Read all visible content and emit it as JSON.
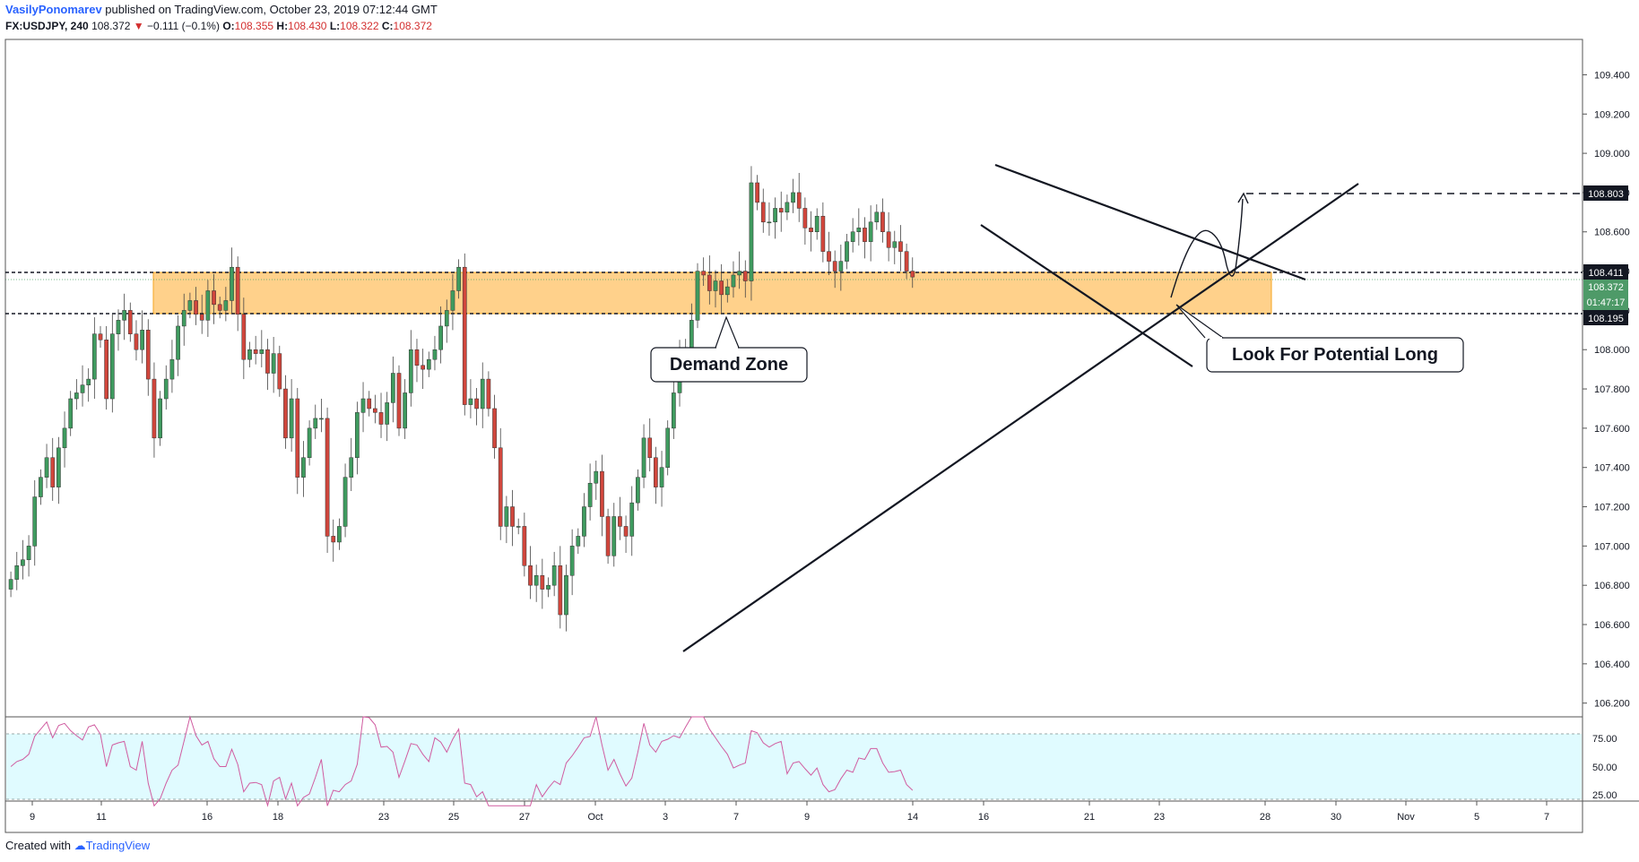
{
  "header": {
    "author": "VasilyPonomarev",
    "published": "published on TradingView.com, October 23, 2019 07:12:44 GMT",
    "symbol": "FX:USDJPY, 240",
    "last": "108.372",
    "change": "−0.111 (−0.1%)",
    "o_label": "O:",
    "o_value": "108.355",
    "h_label": "H:",
    "h_value": "108.430",
    "l_label": "L:",
    "l_value": "108.322",
    "c_label": "C:",
    "c_value": "108.372"
  },
  "footer": {
    "created_with": "Created with",
    "brand": "TradingView"
  },
  "colors": {
    "up": "#3f9b5f",
    "down": "#d0463c",
    "zone": "#ffc977",
    "rsi_band": "#e0fbff",
    "rsi_line": "#d05ca0"
  },
  "chart_data": {
    "type": "candlestick",
    "symbol": "USDJPY",
    "timeframe": "240",
    "ylim": [
      106.13,
      109.58
    ],
    "y_ticks": [
      "109.400",
      "109.200",
      "109.000",
      "108.800",
      "108.600",
      "108.400",
      "108.200",
      "108.000",
      "107.800",
      "107.600",
      "107.400",
      "107.200",
      "107.000",
      "106.800",
      "106.600",
      "106.400",
      "106.200"
    ],
    "x_ticks": [
      "9",
      "11",
      "16",
      "18",
      "23",
      "25",
      "27",
      "Oct",
      "3",
      "7",
      "9",
      "14",
      "16",
      "21",
      "23",
      "28",
      "30",
      "Nov",
      "5",
      "7"
    ],
    "price_labels": {
      "level_high": "108.803",
      "zone_top": "108.411",
      "last": "108.372",
      "countdown": "01:47:17",
      "zone_bottom": "108.195"
    },
    "annotations": {
      "demand_zone": "Demand Zone",
      "look_long": "Look For Potential Long"
    },
    "demand_zone": [
      108.195,
      108.411
    ],
    "target_level": 108.803,
    "closes": [
      106.83,
      106.9,
      106.93,
      107.0,
      107.25,
      107.35,
      107.45,
      107.3,
      107.5,
      107.6,
      107.75,
      107.78,
      107.82,
      107.85,
      108.08,
      108.05,
      107.75,
      108.08,
      108.15,
      108.2,
      108.08,
      108.0,
      108.1,
      107.85,
      107.55,
      107.75,
      107.85,
      107.95,
      108.12,
      108.2,
      108.25,
      108.18,
      108.15,
      108.3,
      108.23,
      108.2,
      108.25,
      108.42,
      108.18,
      107.95,
      108.0,
      107.98,
      108.0,
      107.88,
      107.98,
      107.8,
      107.55,
      107.75,
      107.35,
      107.45,
      107.6,
      107.65,
      107.65,
      107.05,
      107.02,
      107.1,
      107.35,
      107.45,
      107.68,
      107.75,
      107.7,
      107.68,
      107.62,
      107.73,
      107.88,
      107.6,
      107.78,
      108.0,
      107.92,
      107.9,
      107.95,
      108.0,
      108.12,
      108.2,
      108.3,
      108.42,
      107.72,
      107.75,
      107.7,
      107.85,
      107.7,
      107.5,
      107.1,
      107.2,
      107.1,
      107.1,
      106.9,
      106.8,
      106.85,
      106.78,
      106.8,
      106.9,
      106.65,
      106.85,
      107.0,
      107.05,
      107.2,
      107.32,
      107.38,
      107.15,
      106.95,
      107.15,
      107.1,
      107.05,
      107.22,
      107.35,
      107.55,
      107.45,
      107.3,
      107.4,
      107.6,
      107.78,
      107.95,
      108.0,
      108.15,
      108.4,
      108.38,
      108.3,
      108.35,
      108.28,
      108.32,
      108.38,
      108.4,
      108.35,
      108.85,
      108.75,
      108.65,
      108.65,
      108.72,
      108.7,
      108.75,
      108.8,
      108.72,
      108.62,
      108.6,
      108.68,
      108.5,
      108.45,
      108.4,
      108.45,
      108.55,
      108.6,
      108.62,
      108.55,
      108.65,
      108.7,
      108.6,
      108.52,
      108.55,
      108.5,
      108.4,
      108.37
    ]
  },
  "rsi": {
    "levels": [
      "75.00",
      "50.00",
      "25.00"
    ]
  }
}
